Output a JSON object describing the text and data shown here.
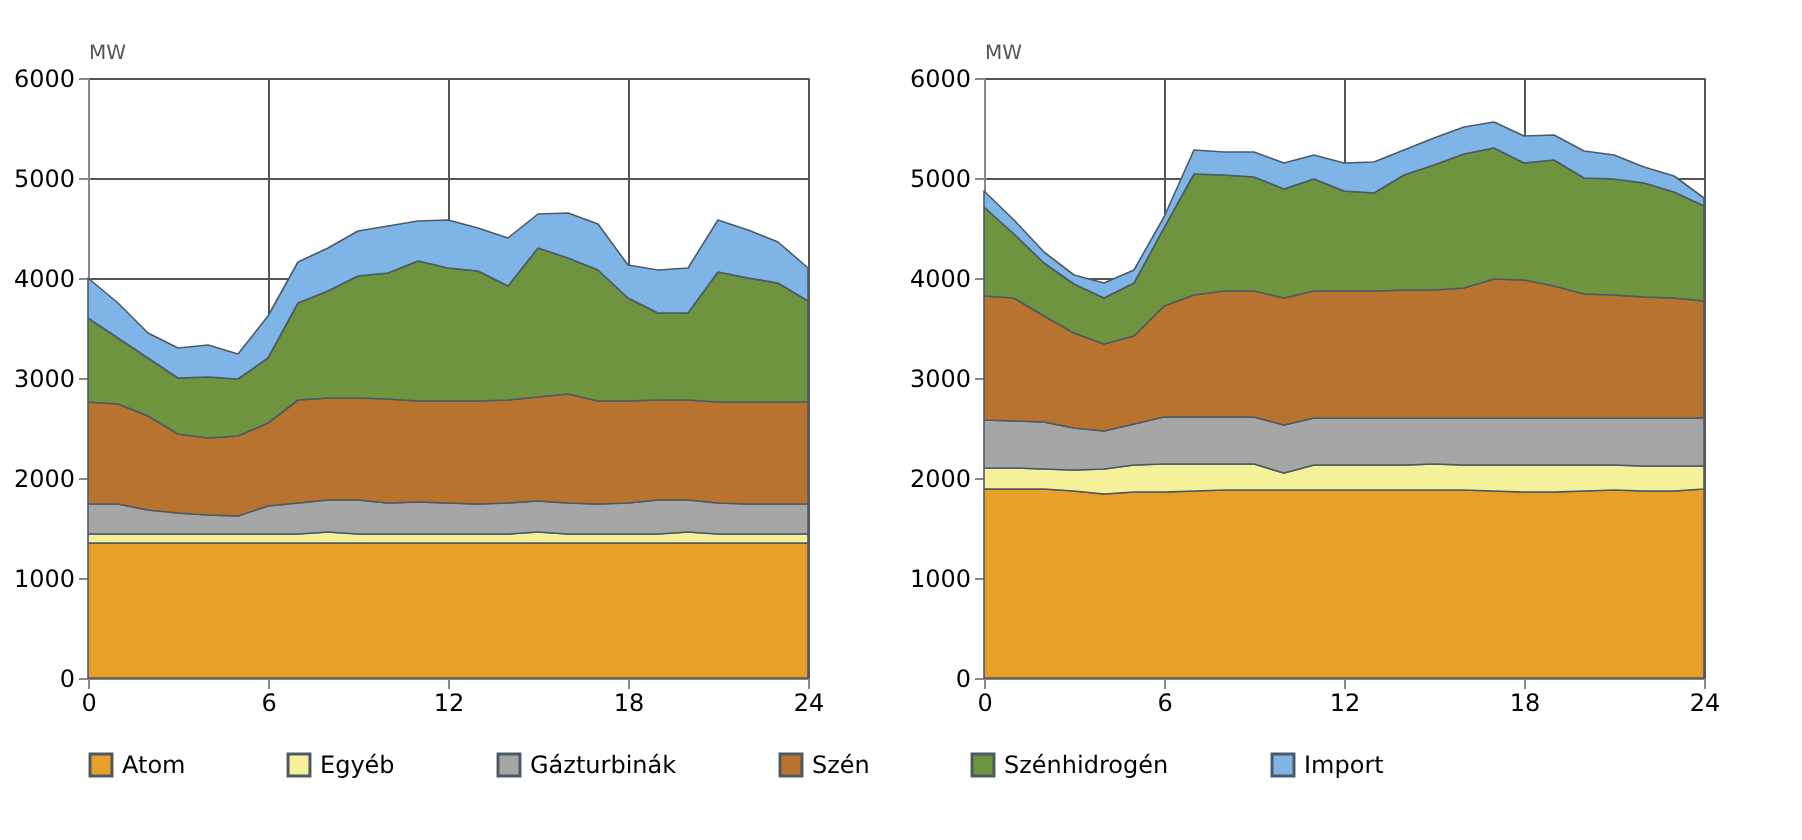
{
  "chart_data": [
    {
      "type": "area",
      "stacked": true,
      "ylabel": "MW",
      "xlim": [
        0,
        24
      ],
      "xticks": [
        0,
        6,
        12,
        18,
        24
      ],
      "ylim": [
        0,
        6000
      ],
      "yticks": [
        0,
        1000,
        2000,
        3000,
        4000,
        5000,
        6000
      ],
      "grid": true,
      "legend": "bottom",
      "x": [
        0,
        1,
        2,
        3,
        4,
        5,
        6,
        7,
        8,
        9,
        10,
        11,
        12,
        13,
        14,
        15,
        16,
        17,
        18,
        19,
        20,
        21,
        22,
        23,
        24
      ],
      "series": [
        {
          "name": "Atom",
          "color": "#e8a02a",
          "values": [
            1350,
            1350,
            1350,
            1350,
            1350,
            1350,
            1350,
            1350,
            1350,
            1350,
            1350,
            1350,
            1350,
            1350,
            1350,
            1350,
            1350,
            1350,
            1350,
            1350,
            1350,
            1350,
            1350,
            1350,
            1350
          ]
        },
        {
          "name": "Egyéb",
          "color": "#f5f09a",
          "values": [
            90,
            90,
            90,
            90,
            90,
            90,
            90,
            90,
            110,
            90,
            90,
            90,
            90,
            90,
            90,
            110,
            90,
            90,
            90,
            90,
            110,
            90,
            90,
            90,
            90
          ]
        },
        {
          "name": "Gázturbinák",
          "color": "#a6a6a6",
          "values": [
            300,
            300,
            240,
            210,
            190,
            180,
            280,
            310,
            320,
            340,
            310,
            320,
            310,
            300,
            310,
            310,
            310,
            300,
            310,
            340,
            320,
            310,
            300,
            300,
            300
          ]
        },
        {
          "name": "Szén",
          "color": "#b8732e",
          "values": [
            1020,
            1000,
            940,
            790,
            770,
            800,
            830,
            1030,
            1020,
            1020,
            1040,
            1010,
            1020,
            1030,
            1030,
            1040,
            1090,
            1030,
            1020,
            1000,
            1000,
            1010,
            1020,
            1020,
            1020
          ]
        },
        {
          "name": "Szénhidrogén",
          "color": "#6e9440",
          "values": [
            840,
            660,
            580,
            560,
            610,
            570,
            650,
            970,
            1070,
            1220,
            1260,
            1400,
            1330,
            1300,
            1140,
            1490,
            1360,
            1310,
            1030,
            870,
            870,
            1300,
            1240,
            1190,
            1010
          ]
        },
        {
          "name": "Import",
          "color": "#7fb5e6",
          "values": [
            400,
            350,
            250,
            300,
            320,
            250,
            420,
            410,
            430,
            450,
            470,
            400,
            480,
            430,
            480,
            340,
            450,
            460,
            330,
            430,
            450,
            520,
            480,
            410,
            330
          ]
        }
      ]
    },
    {
      "type": "area",
      "stacked": true,
      "ylabel": "MW",
      "xlim": [
        0,
        24
      ],
      "xticks": [
        0,
        6,
        12,
        18,
        24
      ],
      "ylim": [
        0,
        6000
      ],
      "yticks": [
        0,
        1000,
        2000,
        3000,
        4000,
        5000,
        6000
      ],
      "grid": true,
      "legend": "bottom",
      "x": [
        0,
        1,
        2,
        3,
        4,
        5,
        6,
        7,
        8,
        9,
        10,
        11,
        12,
        13,
        14,
        15,
        16,
        17,
        18,
        19,
        20,
        21,
        22,
        23,
        24
      ],
      "series": [
        {
          "name": "Atom",
          "color": "#e8a02a",
          "values": [
            1890,
            1890,
            1890,
            1870,
            1840,
            1860,
            1860,
            1870,
            1880,
            1880,
            1880,
            1880,
            1880,
            1880,
            1880,
            1880,
            1880,
            1870,
            1860,
            1860,
            1870,
            1880,
            1870,
            1870,
            1890
          ]
        },
        {
          "name": "Egyéb",
          "color": "#f5f09a",
          "values": [
            210,
            210,
            200,
            210,
            250,
            270,
            280,
            270,
            260,
            260,
            170,
            250,
            250,
            250,
            250,
            260,
            250,
            260,
            270,
            270,
            260,
            250,
            250,
            250,
            230
          ]
        },
        {
          "name": "Gázturbinák",
          "color": "#a6a6a6",
          "values": [
            480,
            470,
            470,
            420,
            380,
            410,
            470,
            470,
            470,
            470,
            480,
            470,
            470,
            470,
            470,
            460,
            470,
            470,
            470,
            470,
            470,
            470,
            480,
            480,
            480
          ]
        },
        {
          "name": "Szén",
          "color": "#b8732e",
          "values": [
            1240,
            1230,
            1060,
            950,
            870,
            880,
            1110,
            1220,
            1260,
            1260,
            1270,
            1270,
            1270,
            1270,
            1280,
            1280,
            1300,
            1390,
            1380,
            1320,
            1240,
            1230,
            1210,
            1200,
            1170
          ]
        },
        {
          "name": "Szénhidrogén",
          "color": "#6e9440",
          "values": [
            890,
            640,
            530,
            490,
            460,
            530,
            780,
            1210,
            1160,
            1140,
            1090,
            1120,
            1000,
            980,
            1150,
            1250,
            1340,
            1310,
            1170,
            1260,
            1160,
            1160,
            1140,
            1060,
            950
          ]
        },
        {
          "name": "Import",
          "color": "#7fb5e6",
          "values": [
            160,
            140,
            110,
            90,
            150,
            130,
            110,
            240,
            230,
            250,
            260,
            240,
            280,
            310,
            250,
            270,
            270,
            260,
            270,
            250,
            270,
            240,
            160,
            160,
            80
          ]
        }
      ]
    }
  ]
}
